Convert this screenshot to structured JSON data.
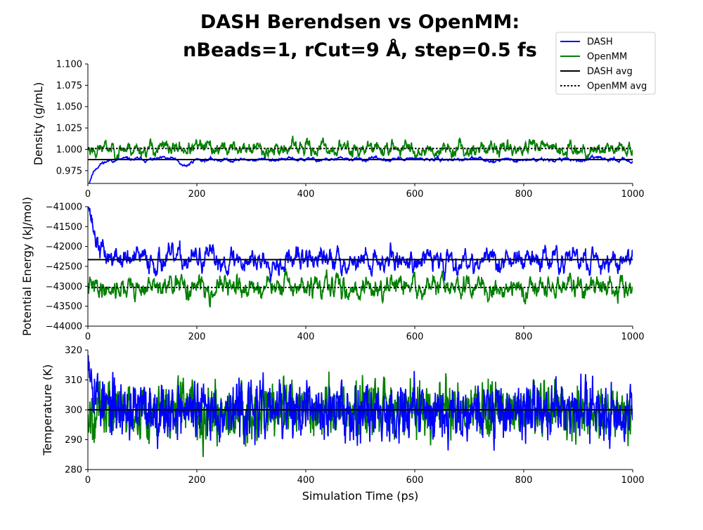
{
  "title": {
    "line1": "DASH Berendsen vs OpenMM:",
    "line2": "nBeads=1, rCut=9 Å, step=0.5 fs"
  },
  "legend": {
    "placement": "top-right",
    "entries": [
      {
        "label": "DASH",
        "color": "#0000ff",
        "style": "solid"
      },
      {
        "label": "OpenMM",
        "color": "#008000",
        "style": "solid"
      },
      {
        "label": "DASH avg",
        "color": "#000000",
        "style": "solid"
      },
      {
        "label": "OpenMM avg",
        "color": "#000000",
        "style": "dotted"
      }
    ]
  },
  "colors": {
    "dash": "#0000ff",
    "openmm": "#008000",
    "avg": "#000000"
  },
  "chart_data": [
    {
      "type": "line",
      "xlabel": "",
      "ylabel": "Density (g/mL)",
      "xlim": [
        0,
        1000
      ],
      "ylim": [
        0.96,
        1.1
      ],
      "xticks": [
        "0",
        "200",
        "400",
        "600",
        "800",
        "1000"
      ],
      "yticks": [
        "0.975",
        "1.000",
        "1.025",
        "1.050",
        "1.075",
        "1.100"
      ],
      "grid": false,
      "series": [
        {
          "name": "DASH",
          "color": "#0000ff",
          "description": "starts at 0.955, rises to ~0.988 by 20 ps, dip to ~0.978 near 170 ps, fluctuates 0.980-0.997",
          "start_value": 0.955,
          "mean": 0.988,
          "amplitude": 0.005
        },
        {
          "name": "OpenMM",
          "color": "#008000",
          "mean": 1.001,
          "amplitude": 0.012
        },
        {
          "name": "DASH avg",
          "color": "#000000",
          "style": "solid",
          "value": 0.988
        },
        {
          "name": "OpenMM avg",
          "color": "#000000",
          "style": "dotted",
          "value": 1.001
        }
      ]
    },
    {
      "type": "line",
      "xlabel": "",
      "ylabel": "Potential Energy (kJ/mol)",
      "xlim": [
        0,
        1000
      ],
      "ylim": [
        -44000,
        -41000
      ],
      "xticks": [
        "0",
        "200",
        "400",
        "600",
        "800",
        "1000"
      ],
      "yticks": [
        "−44000",
        "−43500",
        "−43000",
        "−42500",
        "−42000",
        "−41500",
        "−41000"
      ],
      "grid": false,
      "series": [
        {
          "name": "DASH",
          "color": "#0000ff",
          "start_value": -40500,
          "mean": -42330,
          "amplitude": 350
        },
        {
          "name": "OpenMM",
          "color": "#008000",
          "mean": -43030,
          "amplitude": 320
        },
        {
          "name": "DASH avg",
          "color": "#000000",
          "style": "solid",
          "value": -42330
        },
        {
          "name": "OpenMM avg",
          "color": "#000000",
          "style": "dotted",
          "value": -43030
        }
      ]
    },
    {
      "type": "line",
      "xlabel": "Simulation Time (ps)",
      "ylabel": "Temperature (K)",
      "xlim": [
        0,
        1000
      ],
      "ylim": [
        280,
        320
      ],
      "xticks": [
        "0",
        "200",
        "400",
        "600",
        "800",
        "1000"
      ],
      "yticks": [
        "280",
        "290",
        "300",
        "310",
        "320"
      ],
      "grid": false,
      "series": [
        {
          "name": "DASH",
          "color": "#0000ff",
          "start_value": 322,
          "mean": 299.9,
          "amplitude": 5.5
        },
        {
          "name": "OpenMM",
          "color": "#008000",
          "mean": 300.1,
          "amplitude": 5.5
        },
        {
          "name": "DASH avg",
          "color": "#000000",
          "style": "solid",
          "value": 300.0
        },
        {
          "name": "OpenMM avg",
          "color": "#000000",
          "style": "dotted",
          "value": 300.0
        }
      ]
    }
  ]
}
